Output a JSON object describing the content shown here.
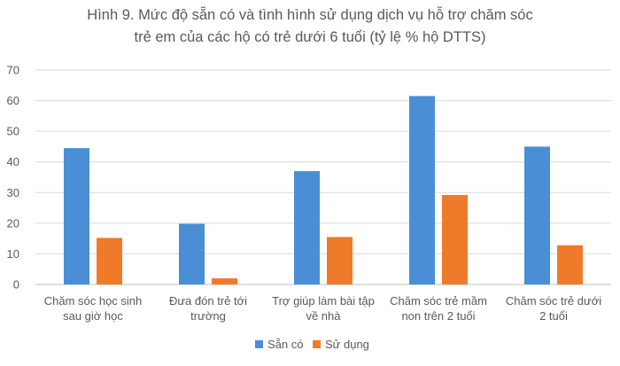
{
  "chart_data": {
    "type": "bar",
    "title_line1": "Hình 9. Mức độ sẵn có và tình hình sử dụng dịch vụ hỗ trợ chăm sóc",
    "title_line2": "trẻ em của các hộ có trẻ dưới 6 tuổi (tỷ lệ % hộ DTTS)",
    "categories": [
      [
        "Chăm sóc học sinh",
        "sau giờ học"
      ],
      [
        "Đưa đón trẻ tới",
        "trường"
      ],
      [
        "Trợ giúp làm bài tập",
        "về nhà"
      ],
      [
        "Chăm sóc trẻ mầm",
        "non trên 2 tuổi"
      ],
      [
        "Chăm sóc trẻ dưới",
        "2 tuổi"
      ]
    ],
    "series": [
      {
        "name": "Sẵn có",
        "color": "#4a8fd6",
        "values": [
          44.5,
          19.8,
          37.0,
          61.5,
          45.0
        ]
      },
      {
        "name": "Sử dụng",
        "color": "#ef7b2a",
        "values": [
          15.2,
          2.0,
          15.5,
          29.2,
          12.8
        ]
      }
    ],
    "ylim": [
      0,
      70
    ],
    "yticks": [
      0,
      10,
      20,
      30,
      40,
      50,
      60,
      70
    ],
    "grid": true,
    "legend": "bottom"
  }
}
